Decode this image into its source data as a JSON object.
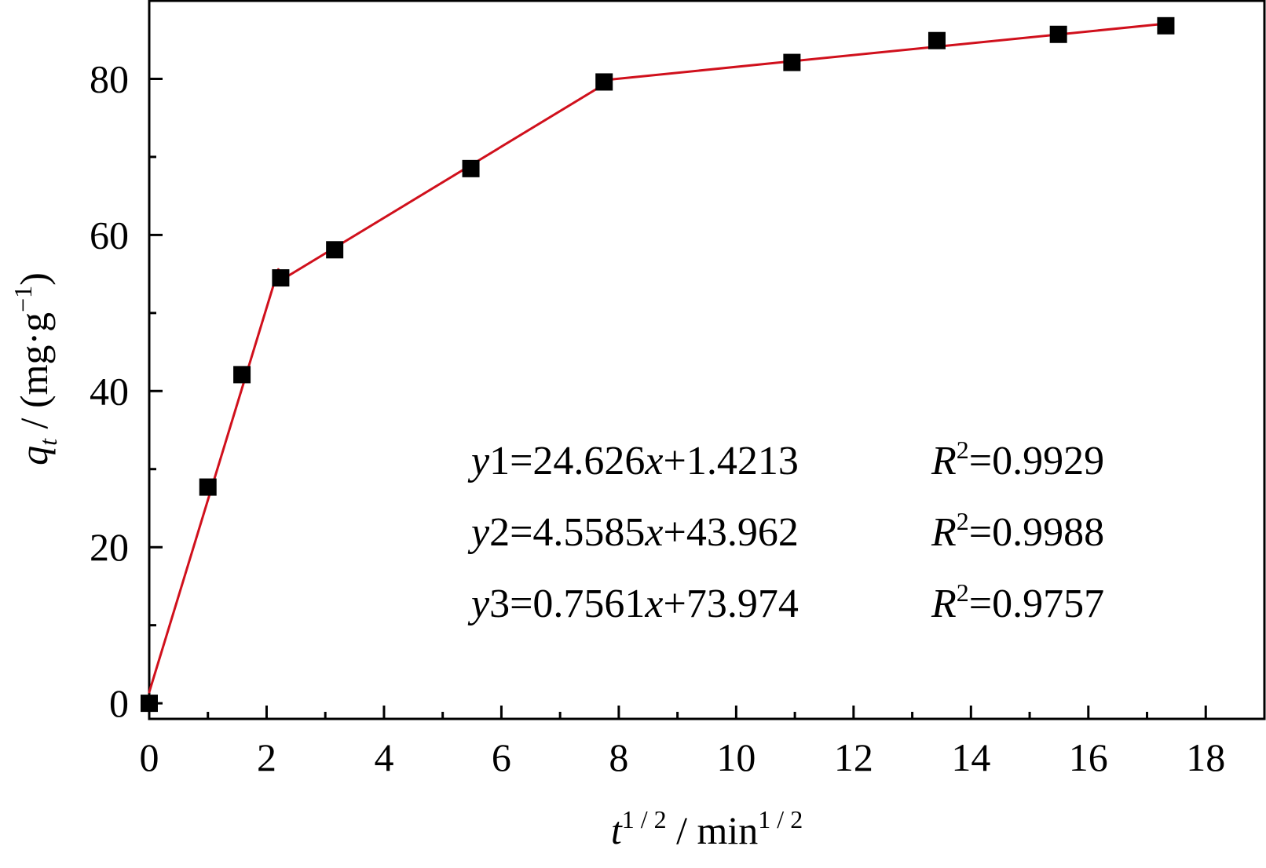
{
  "chart_data": {
    "type": "scatter",
    "x_axis": {
      "label_main": "t",
      "label_main_sup": "1 / 2",
      "label_unit": " / min",
      "label_unit_sup": "1 / 2",
      "range": [
        0,
        19
      ],
      "ticks": [
        0,
        2,
        4,
        6,
        8,
        10,
        12,
        14,
        16,
        18
      ],
      "minor_ticks": [
        1,
        3,
        5,
        7,
        9,
        11,
        13,
        15,
        17
      ]
    },
    "y_axis": {
      "label_main": "q",
      "label_main_sub": "t",
      "label_unit": " / (mg·g",
      "label_unit_sup": "−1",
      "label_close": ")",
      "range": [
        -2,
        90
      ],
      "ticks": [
        0,
        20,
        40,
        60,
        80
      ],
      "minor_ticks": [
        10,
        30,
        50,
        70
      ]
    },
    "points": [
      {
        "x": 0,
        "y": 0
      },
      {
        "x": 1.0,
        "y": 27.7
      },
      {
        "x": 1.58,
        "y": 42.1
      },
      {
        "x": 2.24,
        "y": 54.5
      },
      {
        "x": 3.16,
        "y": 58.1
      },
      {
        "x": 5.48,
        "y": 68.5
      },
      {
        "x": 7.75,
        "y": 79.6
      },
      {
        "x": 10.95,
        "y": 82.1
      },
      {
        "x": 13.42,
        "y": 84.9
      },
      {
        "x": 15.49,
        "y": 85.7
      },
      {
        "x": 17.32,
        "y": 86.8
      }
    ],
    "fit_segments": [
      {
        "x": [
          0,
          2.2
        ]
      },
      {
        "x": [
          2.2,
          7.75
        ]
      },
      {
        "x": [
          7.75,
          17.32
        ]
      }
    ],
    "equations": [
      {
        "y_name": "y",
        "y_idx": "1",
        "rhs_a": "=24.626",
        "x_name": "x",
        "rhs_b": "+1.4213",
        "r_name": "R",
        "r_sup": "2",
        "r_val": "=0.9929"
      },
      {
        "y_name": "y",
        "y_idx": "2",
        "rhs_a": "=4.5585",
        "x_name": "x",
        "rhs_b": "+43.962",
        "r_name": "R",
        "r_sup": "2",
        "r_val": "=0.9988"
      },
      {
        "y_name": "y",
        "y_idx": "3",
        "rhs_a": "=0.7561",
        "x_name": "x",
        "rhs_b": "+73.974",
        "r_name": "R",
        "r_sup": "2",
        "r_val": "=0.9757"
      }
    ],
    "colors": {
      "fit_line": "#d0101c",
      "marker": "#000000",
      "axis": "#000000"
    },
    "marker_shape": "filled-square",
    "grid": false,
    "legend": "none"
  }
}
